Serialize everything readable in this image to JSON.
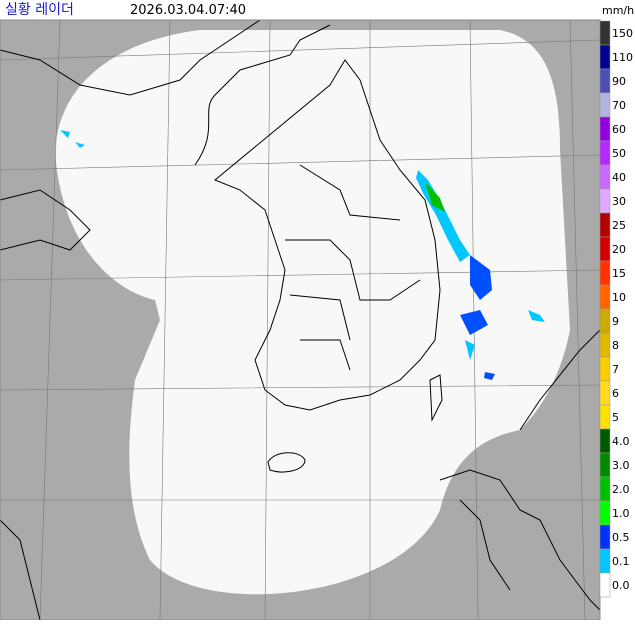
{
  "header": {
    "title": "실황 레이더",
    "time": "2026.03.04.07:40",
    "unit": "mm/h"
  },
  "legend": [
    {
      "label": "150",
      "color": "#333333"
    },
    {
      "label": "110",
      "color": "#000390"
    },
    {
      "label": "90",
      "color": "#4c4eb1"
    },
    {
      "label": "70",
      "color": "#b3b4de"
    },
    {
      "label": "60",
      "color": "#9300e4"
    },
    {
      "label": "50",
      "color": "#b329ff"
    },
    {
      "label": "40",
      "color": "#c969ff"
    },
    {
      "label": "30",
      "color": "#e0a9ff"
    },
    {
      "label": "25",
      "color": "#b40000"
    },
    {
      "label": "20",
      "color": "#d20000"
    },
    {
      "label": "15",
      "color": "#ff3300"
    },
    {
      "label": "10",
      "color": "#ff6600"
    },
    {
      "label": "9",
      "color": "#ccaa00"
    },
    {
      "label": "8",
      "color": "#e0b900"
    },
    {
      "label": "7",
      "color": "#f9cd00"
    },
    {
      "label": "6",
      "color": "#ffdc1f"
    },
    {
      "label": "5",
      "color": "#ffe100"
    },
    {
      "label": "4.0",
      "color": "#005a00"
    },
    {
      "label": "3.0",
      "color": "#008c00"
    },
    {
      "label": "2.0",
      "color": "#00be00"
    },
    {
      "label": "1.0",
      "color": "#00ff00"
    },
    {
      "label": "0.5",
      "color": "#0033f5"
    },
    {
      "label": "0.1",
      "color": "#00c8ff"
    },
    {
      "label": "0.0",
      "color": "#ffffff"
    }
  ]
}
